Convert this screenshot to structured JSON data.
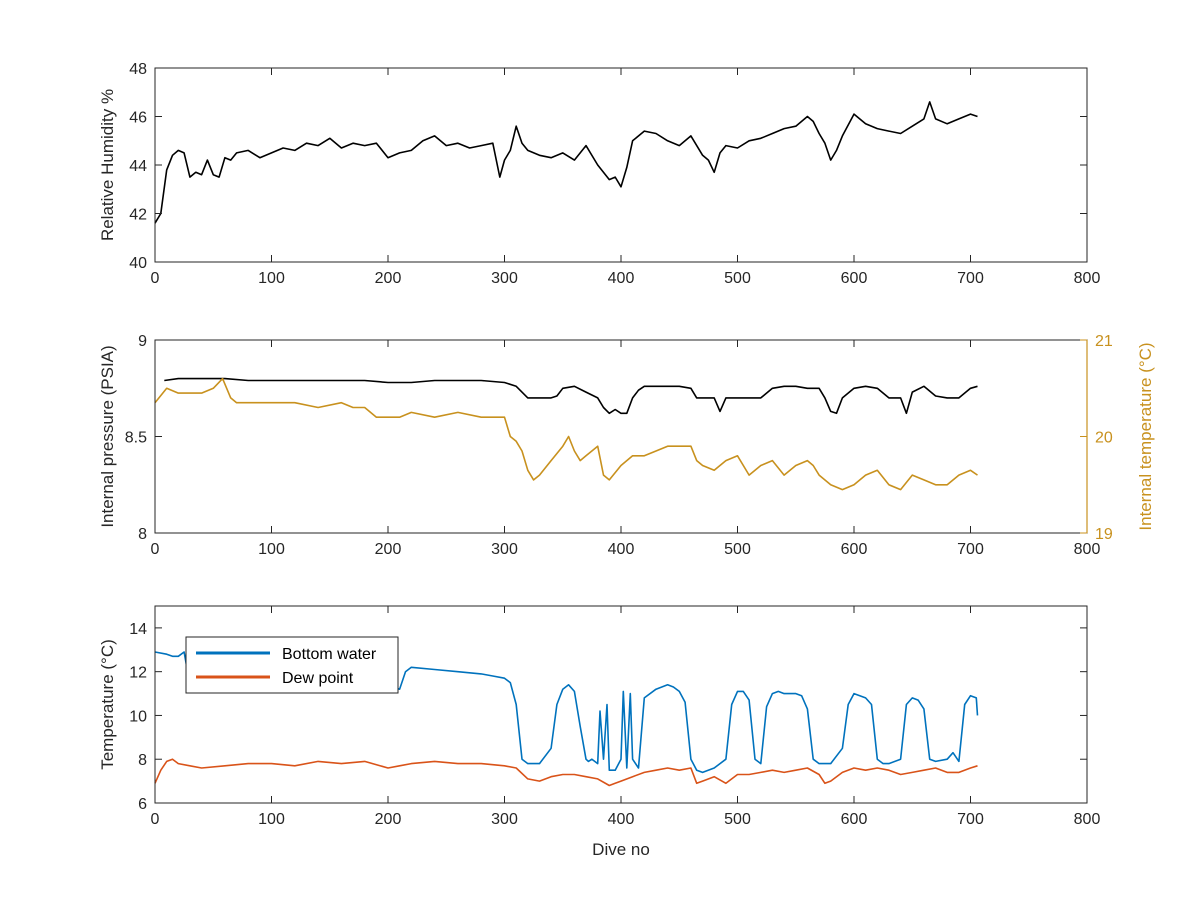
{
  "chart_data": [
    {
      "type": "line",
      "xlim": [
        0,
        800
      ],
      "ylim": [
        40,
        48
      ],
      "x_ticks": [
        "0",
        "100",
        "200",
        "300",
        "400",
        "500",
        "600",
        "700",
        "800"
      ],
      "y_ticks": [
        "40",
        "42",
        "44",
        "46",
        "48"
      ],
      "xlabel": "",
      "ylabel": "Relative Humidity %",
      "grid": false,
      "legend": "none",
      "colors": {
        "Relative Humidity": "#000000"
      },
      "series": [
        {
          "key": "rh",
          "x": [
            0,
            5,
            10,
            15,
            20,
            25,
            30,
            35,
            40,
            45,
            50,
            55,
            60,
            65,
            70,
            80,
            90,
            100,
            110,
            120,
            130,
            140,
            150,
            160,
            170,
            180,
            190,
            200,
            210,
            220,
            230,
            240,
            250,
            260,
            270,
            280,
            290,
            296,
            300,
            305,
            310,
            315,
            320,
            330,
            340,
            350,
            360,
            370,
            380,
            390,
            395,
            400,
            405,
            410,
            420,
            430,
            440,
            450,
            460,
            470,
            475,
            480,
            485,
            490,
            500,
            510,
            520,
            530,
            540,
            550,
            560,
            565,
            570,
            575,
            580,
            585,
            590,
            600,
            610,
            620,
            630,
            640,
            650,
            660,
            665,
            670,
            680,
            690,
            700,
            706
          ],
          "y": [
            41.6,
            42.0,
            43.8,
            44.4,
            44.6,
            44.5,
            43.5,
            43.7,
            43.6,
            44.2,
            43.6,
            43.5,
            44.3,
            44.2,
            44.5,
            44.6,
            44.3,
            44.5,
            44.7,
            44.6,
            44.9,
            44.8,
            45.1,
            44.7,
            44.9,
            44.8,
            44.9,
            44.3,
            44.5,
            44.6,
            45.0,
            45.2,
            44.8,
            44.9,
            44.7,
            44.8,
            44.9,
            43.5,
            44.2,
            44.6,
            45.6,
            44.9,
            44.6,
            44.4,
            44.3,
            44.5,
            44.2,
            44.8,
            44.0,
            43.4,
            43.5,
            43.1,
            43.9,
            45.0,
            45.4,
            45.3,
            45.0,
            44.8,
            45.2,
            44.4,
            44.2,
            43.7,
            44.5,
            44.8,
            44.7,
            45.0,
            45.1,
            45.3,
            45.5,
            45.6,
            46.0,
            45.8,
            45.3,
            44.9,
            44.2,
            44.6,
            45.2,
            46.1,
            45.7,
            45.5,
            45.4,
            45.3,
            45.6,
            45.9,
            46.6,
            45.9,
            45.7,
            45.9,
            46.1,
            46.0
          ]
        }
      ]
    },
    {
      "type": "line",
      "xlim": [
        0,
        800
      ],
      "ylim": [
        8,
        9
      ],
      "ylim_right": [
        19,
        21
      ],
      "x_ticks": [
        "0",
        "100",
        "200",
        "300",
        "400",
        "500",
        "600",
        "700",
        "800"
      ],
      "y_ticks": [
        "8",
        "8.5",
        "9"
      ],
      "y_ticks_right": [
        "19",
        "20",
        "21"
      ],
      "xlabel": "",
      "ylabel": "Internal pressure (PSIA)",
      "ylabel_right": "Internal temperature (°C)",
      "grid": false,
      "legend": "none",
      "colors": {
        "Internal pressure": "#000000",
        "Internal temperature": "#c8911e"
      },
      "series": [
        {
          "key": "pressure",
          "axis": "left",
          "x": [
            8,
            20,
            40,
            60,
            80,
            100,
            120,
            140,
            160,
            180,
            200,
            220,
            240,
            260,
            280,
            300,
            310,
            320,
            330,
            340,
            345,
            350,
            360,
            370,
            380,
            385,
            390,
            395,
            400,
            405,
            410,
            415,
            420,
            430,
            440,
            450,
            460,
            465,
            470,
            475,
            480,
            485,
            490,
            500,
            510,
            520,
            530,
            540,
            550,
            560,
            570,
            575,
            580,
            585,
            590,
            600,
            610,
            620,
            630,
            640,
            645,
            650,
            660,
            670,
            680,
            690,
            700,
            706
          ],
          "y": [
            8.79,
            8.8,
            8.8,
            8.8,
            8.79,
            8.79,
            8.79,
            8.79,
            8.79,
            8.79,
            8.78,
            8.78,
            8.79,
            8.79,
            8.79,
            8.78,
            8.76,
            8.7,
            8.7,
            8.7,
            8.71,
            8.75,
            8.76,
            8.73,
            8.7,
            8.65,
            8.62,
            8.64,
            8.62,
            8.62,
            8.7,
            8.74,
            8.76,
            8.76,
            8.76,
            8.76,
            8.75,
            8.7,
            8.7,
            8.7,
            8.7,
            8.63,
            8.7,
            8.7,
            8.7,
            8.7,
            8.75,
            8.76,
            8.76,
            8.75,
            8.75,
            8.7,
            8.63,
            8.62,
            8.7,
            8.75,
            8.76,
            8.75,
            8.7,
            8.7,
            8.62,
            8.73,
            8.76,
            8.71,
            8.7,
            8.7,
            8.75,
            8.76
          ]
        },
        {
          "key": "int_temp",
          "axis": "right",
          "x": [
            0,
            10,
            20,
            30,
            40,
            50,
            58,
            65,
            70,
            80,
            100,
            120,
            140,
            160,
            170,
            180,
            190,
            200,
            210,
            220,
            240,
            260,
            280,
            290,
            300,
            305,
            310,
            315,
            320,
            325,
            330,
            340,
            350,
            355,
            360,
            365,
            370,
            380,
            385,
            390,
            400,
            410,
            420,
            430,
            440,
            450,
            460,
            465,
            470,
            480,
            490,
            500,
            510,
            520,
            530,
            540,
            550,
            560,
            565,
            570,
            580,
            590,
            600,
            610,
            620,
            630,
            640,
            650,
            660,
            670,
            680,
            690,
            700,
            706
          ],
          "y": [
            20.35,
            20.5,
            20.45,
            20.45,
            20.45,
            20.5,
            20.6,
            20.4,
            20.35,
            20.35,
            20.35,
            20.35,
            20.3,
            20.35,
            20.3,
            20.3,
            20.2,
            20.2,
            20.2,
            20.25,
            20.2,
            20.25,
            20.2,
            20.2,
            20.2,
            20.0,
            19.95,
            19.85,
            19.65,
            19.55,
            19.6,
            19.75,
            19.9,
            20.0,
            19.85,
            19.75,
            19.8,
            19.9,
            19.6,
            19.55,
            19.7,
            19.8,
            19.8,
            19.85,
            19.9,
            19.9,
            19.9,
            19.75,
            19.7,
            19.65,
            19.75,
            19.8,
            19.6,
            19.7,
            19.75,
            19.6,
            19.7,
            19.75,
            19.7,
            19.6,
            19.5,
            19.45,
            19.5,
            19.6,
            19.65,
            19.5,
            19.45,
            19.6,
            19.55,
            19.5,
            19.5,
            19.6,
            19.65,
            19.6
          ]
        }
      ]
    },
    {
      "type": "line",
      "xlim": [
        0,
        800
      ],
      "ylim": [
        6,
        15
      ],
      "x_ticks": [
        "0",
        "100",
        "200",
        "300",
        "400",
        "500",
        "600",
        "700",
        "800"
      ],
      "y_ticks": [
        "6",
        "8",
        "10",
        "12",
        "14"
      ],
      "xlabel": "Dive no",
      "ylabel": "Temperature (°C)",
      "grid": false,
      "legend": "top-left",
      "colors": {
        "Bottom water": "#0072bd",
        "Dew point": "#d95319"
      },
      "series": [
        {
          "key": "bottom",
          "name": "Bottom water",
          "x": [
            0,
            10,
            15,
            20,
            25,
            30,
            35,
            40,
            60,
            80,
            100,
            120,
            140,
            160,
            180,
            195,
            200,
            205,
            210,
            215,
            220,
            240,
            260,
            280,
            290,
            300,
            305,
            310,
            315,
            320,
            330,
            340,
            345,
            350,
            355,
            360,
            365,
            370,
            372,
            375,
            380,
            382,
            385,
            388,
            390,
            395,
            400,
            402,
            405,
            408,
            410,
            415,
            420,
            430,
            440,
            445,
            450,
            455,
            460,
            465,
            470,
            480,
            490,
            495,
            500,
            505,
            510,
            515,
            520,
            525,
            530,
            535,
            540,
            550,
            555,
            560,
            565,
            570,
            580,
            590,
            595,
            600,
            605,
            610,
            615,
            620,
            625,
            630,
            640,
            645,
            650,
            655,
            660,
            665,
            670,
            680,
            685,
            690,
            695,
            700,
            705,
            706
          ],
          "y": [
            12.9,
            12.8,
            12.7,
            12.7,
            12.9,
            11.4,
            11.2,
            11.2,
            11.3,
            11.2,
            11.3,
            11.2,
            11.2,
            11.3,
            11.2,
            11.3,
            11.2,
            11.3,
            11.2,
            12.0,
            12.2,
            12.1,
            12.0,
            11.9,
            11.8,
            11.7,
            11.5,
            10.5,
            8.0,
            7.8,
            7.8,
            8.5,
            10.5,
            11.2,
            11.4,
            11.1,
            9.5,
            8.0,
            7.9,
            8.0,
            7.8,
            10.2,
            8.0,
            10.5,
            7.5,
            7.5,
            8.0,
            11.1,
            7.6,
            11.0,
            8.0,
            7.6,
            10.8,
            11.2,
            11.4,
            11.3,
            11.1,
            10.6,
            8.0,
            7.5,
            7.4,
            7.6,
            8.0,
            10.5,
            11.1,
            11.1,
            10.7,
            8.0,
            7.8,
            10.4,
            11.0,
            11.1,
            11.0,
            11.0,
            10.9,
            10.3,
            8.0,
            7.8,
            7.8,
            8.5,
            10.5,
            11.0,
            10.9,
            10.8,
            10.5,
            8.0,
            7.8,
            7.8,
            8.0,
            10.5,
            10.8,
            10.7,
            10.3,
            8.0,
            7.9,
            8.0,
            8.3,
            7.9,
            10.5,
            10.9,
            10.8,
            10.0
          ]
        },
        {
          "key": "dew",
          "name": "Dew point",
          "x": [
            0,
            5,
            10,
            15,
            20,
            30,
            40,
            60,
            80,
            100,
            120,
            140,
            160,
            180,
            200,
            210,
            220,
            240,
            260,
            280,
            300,
            310,
            320,
            330,
            340,
            350,
            360,
            370,
            380,
            390,
            395,
            400,
            410,
            420,
            430,
            440,
            450,
            460,
            465,
            470,
            480,
            490,
            500,
            510,
            520,
            530,
            540,
            550,
            560,
            570,
            575,
            580,
            590,
            600,
            610,
            620,
            630,
            640,
            650,
            660,
            670,
            680,
            690,
            700,
            706
          ],
          "y": [
            6.9,
            7.5,
            7.9,
            8.0,
            7.8,
            7.7,
            7.6,
            7.7,
            7.8,
            7.8,
            7.7,
            7.9,
            7.8,
            7.9,
            7.6,
            7.7,
            7.8,
            7.9,
            7.8,
            7.8,
            7.7,
            7.6,
            7.1,
            7.0,
            7.2,
            7.3,
            7.3,
            7.2,
            7.1,
            6.8,
            6.9,
            7.0,
            7.2,
            7.4,
            7.5,
            7.6,
            7.5,
            7.6,
            6.9,
            7.0,
            7.2,
            6.9,
            7.3,
            7.3,
            7.4,
            7.5,
            7.4,
            7.5,
            7.6,
            7.3,
            6.9,
            7.0,
            7.4,
            7.6,
            7.5,
            7.6,
            7.5,
            7.3,
            7.4,
            7.5,
            7.6,
            7.4,
            7.4,
            7.6,
            7.7
          ]
        }
      ]
    }
  ]
}
